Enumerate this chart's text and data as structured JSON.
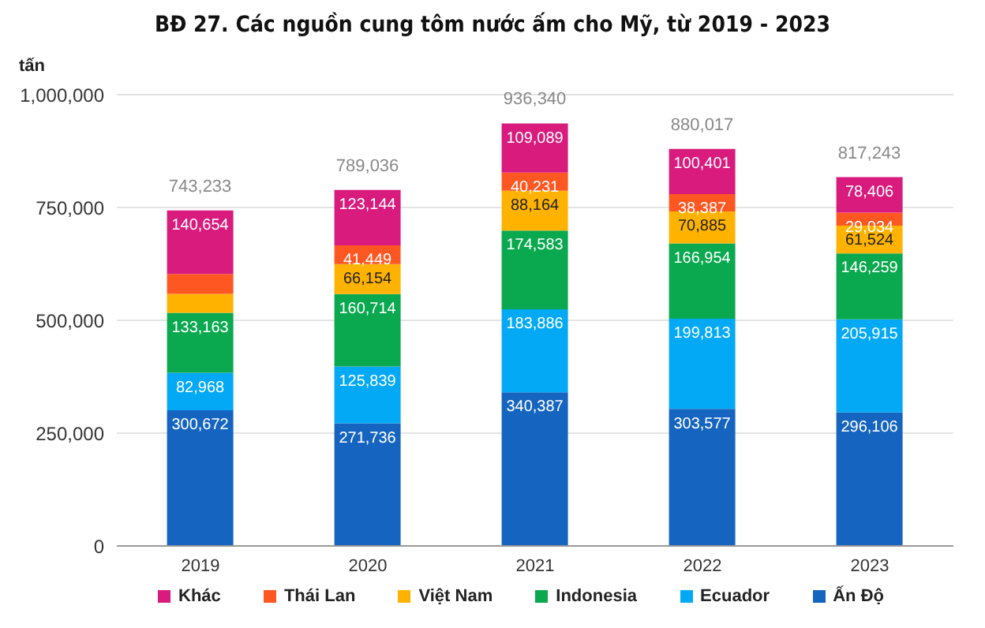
{
  "chart_data": {
    "type": "bar",
    "title": "BĐ 27. Các nguồn cung tôm nước ấm cho Mỹ, từ 2019 - 2023",
    "ylabel": "tấn",
    "categories": [
      "2019",
      "2020",
      "2021",
      "2022",
      "2023"
    ],
    "stacked": true,
    "series": [
      {
        "name": "Ấn Độ",
        "color": "#1565c0",
        "values": [
          300672,
          271736,
          340387,
          303577,
          296106
        ],
        "value_labels": [
          "300,672",
          "271,736",
          "340,387",
          "303,577",
          "296,106"
        ]
      },
      {
        "name": "Ecuador",
        "color": "#03a9f4",
        "values": [
          82968,
          125839,
          183886,
          199813,
          205915
        ],
        "value_labels": [
          "82,968",
          "125,839",
          "183,886",
          "199,813",
          "205,915"
        ]
      },
      {
        "name": "Indonesia",
        "color": "#0aa84f",
        "values": [
          133163,
          160714,
          174583,
          166954,
          146259
        ],
        "value_labels": [
          "133,163",
          "160,714",
          "174,583",
          "166,954",
          "146,259"
        ]
      },
      {
        "name": "Việt Nam",
        "color": "#ffb300",
        "values": [
          41776,
          66154,
          88164,
          70885,
          61524
        ],
        "value_labels": [
          null,
          "66,154",
          "88,164",
          "70,885",
          "61,524"
        ]
      },
      {
        "name": "Thái Lan",
        "color": "#ff5722",
        "values": [
          44000,
          41449,
          40231,
          38387,
          29034
        ],
        "value_labels": [
          null,
          "41,449",
          "40,231",
          "38,387",
          "29,034"
        ]
      },
      {
        "name": "Khác",
        "color": "#d81b7d",
        "values": [
          140654,
          123144,
          109089,
          100401,
          78406
        ],
        "value_labels": [
          "140,654",
          "123,144",
          "109,089",
          "100,401",
          "78,406"
        ]
      }
    ],
    "totals": [
      "743,233",
      "789,036",
      "936,340",
      "880,017",
      "817,243"
    ],
    "ylim": [
      0,
      1000000
    ],
    "yticks": [
      0,
      {
        "value": 250000,
        "label": "250,000"
      },
      {
        "value": 500000,
        "label": "500,000"
      },
      {
        "value": 750000,
        "label": "750,000"
      },
      {
        "value": 1000000,
        "label": "1,000,000"
      }
    ],
    "grid": "y",
    "legend": "bottom"
  }
}
